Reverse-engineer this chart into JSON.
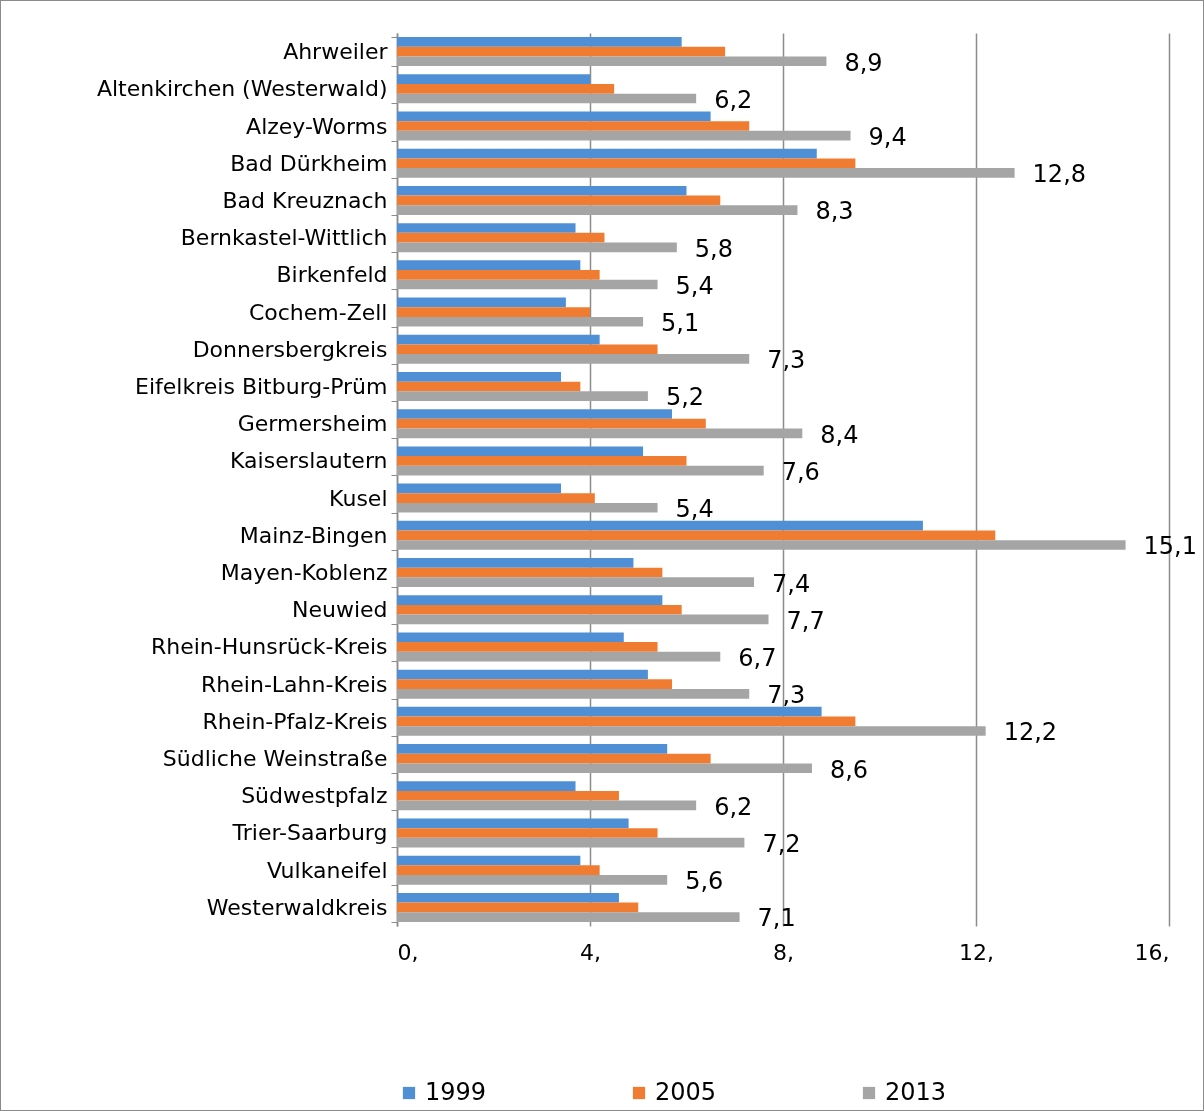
{
  "chart_data": {
    "type": "bar",
    "orientation": "horizontal",
    "categories": [
      "Ahrweiler",
      "Altenkirchen (Westerwald)",
      "Alzey-Worms",
      "Bad Dürkheim",
      "Bad Kreuznach",
      "Bernkastel-Wittlich",
      "Birkenfeld",
      "Cochem-Zell",
      "Donnersbergkreis",
      "Eifelkreis Bitburg-Prüm",
      "Germersheim",
      "Kaiserslautern",
      "Kusel",
      "Mainz-Bingen",
      "Mayen-Koblenz",
      "Neuwied",
      "Rhein-Hunsrück-Kreis",
      "Rhein-Lahn-Kreis",
      "Rhein-Pfalz-Kreis",
      "Südliche Weinstraße",
      "Südwestpfalz",
      "Trier-Saarburg",
      "Vulkaneifel",
      "Westerwaldkreis"
    ],
    "series": [
      {
        "name": "1999",
        "color": "#4f8fd6",
        "values": [
          5.9,
          4.0,
          6.5,
          8.7,
          6.0,
          3.7,
          3.8,
          3.5,
          4.2,
          3.4,
          5.7,
          5.1,
          3.4,
          10.9,
          4.9,
          5.5,
          4.7,
          5.2,
          8.8,
          5.6,
          3.7,
          4.8,
          3.8,
          4.6
        ]
      },
      {
        "name": "2005",
        "color": "#f07c31",
        "values": [
          6.8,
          4.5,
          7.3,
          9.5,
          6.7,
          4.3,
          4.2,
          4.0,
          5.4,
          3.8,
          6.4,
          6.0,
          4.1,
          12.4,
          5.5,
          5.9,
          5.4,
          5.7,
          9.5,
          6.5,
          4.6,
          5.4,
          4.2,
          5.0
        ]
      },
      {
        "name": "2013",
        "color": "#a5a5a5",
        "values": [
          8.9,
          6.2,
          9.4,
          12.8,
          8.3,
          5.8,
          5.4,
          5.1,
          7.3,
          5.2,
          8.4,
          7.6,
          5.4,
          15.1,
          7.4,
          7.7,
          6.7,
          7.3,
          12.2,
          8.6,
          6.2,
          7.2,
          5.6,
          7.1
        ],
        "value_labels": [
          "8,9",
          "6,2",
          "9,4",
          "12,8",
          "8,3",
          "5,8",
          "5,4",
          "5,1",
          "7,3",
          "5,2",
          "8,4",
          "7,6",
          "5,4",
          "15,1",
          "7,4",
          "7,7",
          "6,7",
          "7,3",
          "12,2",
          "8,6",
          "6,2",
          "7,2",
          "5,6",
          "7,1"
        ]
      }
    ],
    "xlim": [
      0,
      16
    ],
    "xticks": [
      {
        "value": 0,
        "label": "0,"
      },
      {
        "value": 4,
        "label": "4,"
      },
      {
        "value": 8,
        "label": "8,"
      },
      {
        "value": 12,
        "label": "12,"
      },
      {
        "value": 16,
        "label": "16,"
      }
    ],
    "grid": "x",
    "legend": "bottom"
  }
}
